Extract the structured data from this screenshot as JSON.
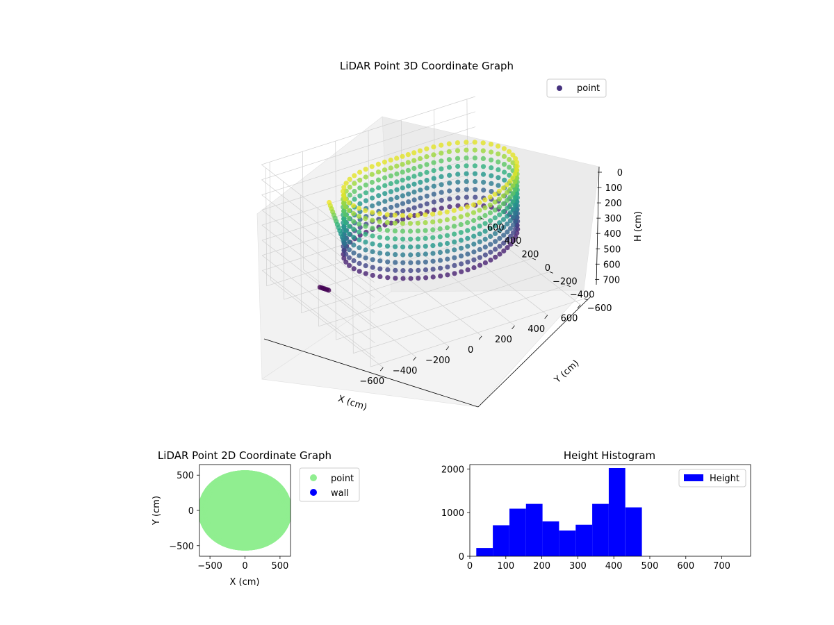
{
  "chart_data": [
    {
      "type": "scatter",
      "projection": "3d",
      "title": "LiDAR Point 3D Coordinate Graph",
      "xlabel": "X (cm)",
      "ylabel": "Y (cm)",
      "zlabel": "H (cm)",
      "xlim": [
        -650,
        650
      ],
      "ylim": [
        -650,
        650
      ],
      "zlim": [
        780,
        0
      ],
      "x_ticks": [
        -600,
        -400,
        -200,
        0,
        200,
        400,
        600
      ],
      "y_ticks": [
        -600,
        -400,
        -200,
        0,
        200,
        400,
        600
      ],
      "z_ticks": [
        0,
        100,
        200,
        300,
        400,
        500,
        600,
        700
      ],
      "z_inverted": true,
      "grid": true,
      "legend": {
        "placement": "top-right",
        "entries": [
          {
            "label": "point",
            "color": "#46327e"
          }
        ]
      },
      "colormap": "viridis",
      "shape": "ring of vertical point columns around the sensor, radius about 380-600 cm, heights about 0-480 cm",
      "series": [
        {
          "name": "point",
          "color": "#46327e"
        }
      ]
    },
    {
      "type": "scatter",
      "title": "LiDAR Point 2D Coordinate Graph",
      "xlabel": "X (cm)",
      "ylabel": "Y (cm)",
      "xlim": [
        -650,
        650
      ],
      "ylim": [
        -650,
        650
      ],
      "x_ticks": [
        -500,
        0,
        500
      ],
      "y_ticks": [
        -500,
        0,
        500
      ],
      "legend": {
        "placement": "right-outside",
        "entries": [
          {
            "label": "point",
            "color": "#90ee90"
          },
          {
            "label": "wall",
            "color": "#0000ff"
          }
        ]
      },
      "series": [
        {
          "name": "point",
          "color": "#90ee90"
        },
        {
          "name": "wall",
          "color": "#0000ff"
        }
      ],
      "shape": "filled disk of points, radius about 600 cm"
    },
    {
      "type": "bar",
      "subtype": "histogram",
      "title": "Height Histogram",
      "xlabel": "",
      "ylabel": "",
      "xlim": [
        0,
        780
      ],
      "ylim": [
        0,
        2100
      ],
      "x_ticks": [
        0,
        100,
        200,
        300,
        400,
        500,
        600,
        700
      ],
      "y_ticks": [
        0,
        1000,
        2000
      ],
      "bin_edges": [
        18,
        64,
        110,
        156,
        202,
        248,
        294,
        340,
        386,
        432,
        478
      ],
      "values": [
        190,
        710,
        1090,
        1200,
        800,
        590,
        720,
        1200,
        2020,
        1120
      ],
      "color": "#0000ff",
      "legend": {
        "placement": "top-right",
        "entries": [
          {
            "label": "Height",
            "color": "#0000ff"
          }
        ]
      },
      "series": [
        {
          "name": "Height",
          "color": "#0000ff"
        }
      ]
    }
  ]
}
